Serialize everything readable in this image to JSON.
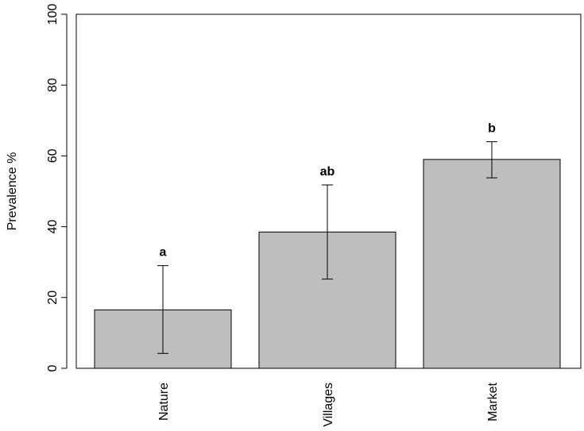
{
  "chart_data": {
    "type": "bar",
    "categories": [
      "Nature",
      "Villages",
      "Market"
    ],
    "values": [
      16.5,
      38.5,
      59
    ],
    "error_low": [
      4.2,
      25.2,
      53.8
    ],
    "error_high": [
      29,
      51.8,
      64
    ],
    "significance_labels": [
      "a",
      "ab",
      "b"
    ],
    "ylabel": "Prevalence %",
    "xlabel": "",
    "title": "",
    "ylim": [
      0,
      100
    ],
    "yticks": [
      0,
      20,
      40,
      60,
      80,
      100
    ],
    "bar_color": "#bebebe",
    "grid": false,
    "legend": "none"
  }
}
